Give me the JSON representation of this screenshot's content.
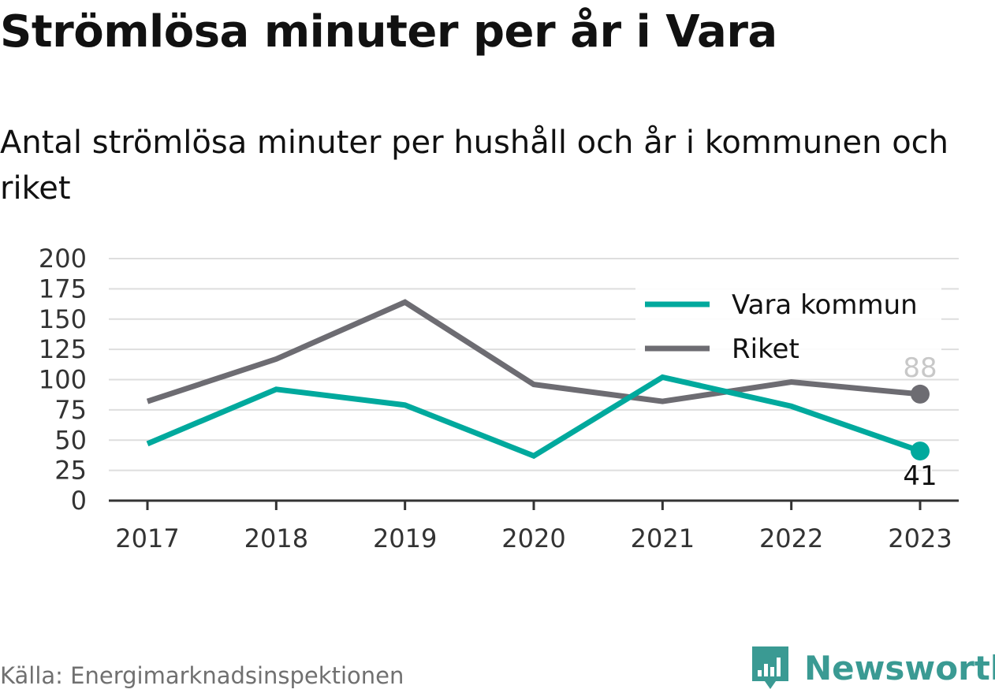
{
  "header": {
    "title": "Strömlösa minuter per år i Vara",
    "subtitle": "Antal strömlösa minuter per hushåll och år i kommunen och riket"
  },
  "footer": {
    "source": "Källa: Energimarknadsinspektionen",
    "brand": "Newsworthy"
  },
  "colors": {
    "vara": "#00a99d",
    "riket": "#6d6c72",
    "grid": "#dedede",
    "axis": "#333333",
    "brand": "#3a9a93"
  },
  "chart_data": {
    "type": "line",
    "categories": [
      "2017",
      "2018",
      "2019",
      "2020",
      "2021",
      "2022",
      "2023"
    ],
    "series": [
      {
        "name": "Vara kommun",
        "values": [
          47,
          92,
          79,
          37,
          102,
          78,
          41
        ]
      },
      {
        "name": "Riket",
        "values": [
          82,
          117,
          164,
          96,
          82,
          98,
          88
        ]
      }
    ],
    "end_labels": [
      "41",
      "88"
    ],
    "y_ticks": [
      "0",
      "25",
      "50",
      "75",
      "100",
      "125",
      "150",
      "175",
      "200"
    ],
    "ylim": [
      0,
      200
    ],
    "xlabel": "",
    "ylabel": "",
    "grid": true,
    "legend_position": "top-right"
  }
}
